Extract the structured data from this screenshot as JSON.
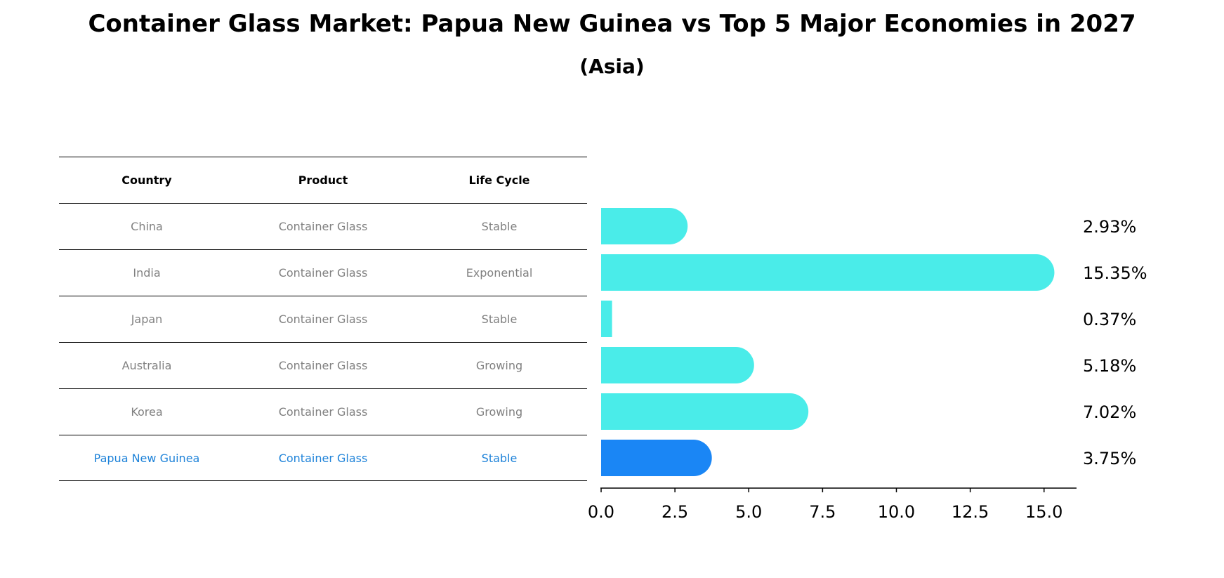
{
  "title": "Container Glass Market: Papua New Guinea vs Top 5 Major Economies in 2027",
  "subtitle": "(Asia)",
  "table": {
    "headers": [
      "Country",
      "Product",
      "Life Cycle"
    ],
    "rows": [
      {
        "country": "China",
        "product": "Container Glass",
        "life_cycle": "Stable"
      },
      {
        "country": "India",
        "product": "Container Glass",
        "life_cycle": "Exponential"
      },
      {
        "country": "Japan",
        "product": "Container Glass",
        "life_cycle": "Stable"
      },
      {
        "country": "Australia",
        "product": "Container Glass",
        "life_cycle": "Growing"
      },
      {
        "country": "Korea",
        "product": "Container Glass",
        "life_cycle": "Growing"
      },
      {
        "country": "Papua New Guinea",
        "product": "Container Glass",
        "life_cycle": "Stable"
      }
    ]
  },
  "chart_data": {
    "type": "bar",
    "orientation": "horizontal",
    "categories": [
      "China",
      "India",
      "Japan",
      "Australia",
      "Korea",
      "Papua New Guinea"
    ],
    "values": [
      2.93,
      15.35,
      0.37,
      5.18,
      7.02,
      3.75
    ],
    "value_labels": [
      "2.93%",
      "15.35%",
      "0.37%",
      "5.18%",
      "7.02%",
      "3.75%"
    ],
    "highlight_category": "Papua New Guinea",
    "xlim": [
      0,
      16.1
    ],
    "xticks": [
      0.0,
      2.5,
      5.0,
      7.5,
      10.0,
      12.5,
      15.0
    ],
    "xtick_labels": [
      "0.0",
      "2.5",
      "5.0",
      "7.5",
      "10.0",
      "12.5",
      "15.0"
    ],
    "xlabel": "",
    "ylabel": "",
    "grid": false,
    "colors": {
      "bar": "#4aece9",
      "highlight_bar": "#1a86f5",
      "highlight_text": "#1f83d9",
      "muted_text": "#808080"
    }
  }
}
